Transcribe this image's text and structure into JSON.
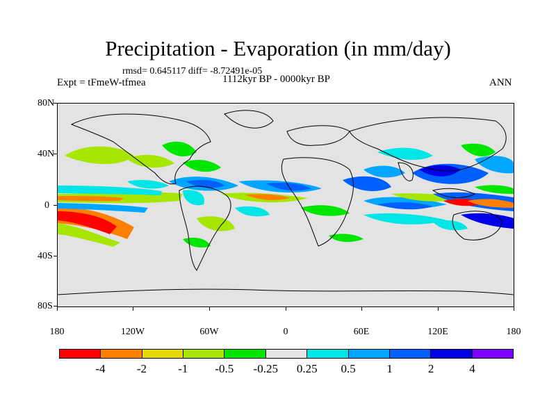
{
  "title": "Precipitation - Evaporation (in mm/day)",
  "stats": "rmsd= 0.645117 diff= -8.72491e-05",
  "period": "1112kyr BP - 0000kyr BP",
  "expt": "Expt = tFmeW-tfmea",
  "season": "ANN",
  "y_axis_labels": [
    "80N",
    "40N",
    "0",
    "40S",
    "80S"
  ],
  "x_axis_labels": [
    "180",
    "120W",
    "60W",
    "0",
    "60E",
    "120E",
    "180"
  ],
  "colorbar": {
    "colors": [
      "#ff0000",
      "#ff8000",
      "#e6d800",
      "#a6e600",
      "#00e600",
      "#e3e3e3",
      "#00e6e6",
      "#00a6ff",
      "#0060ff",
      "#0000e6",
      "#8000ff"
    ],
    "labels": [
      "-4",
      "-2",
      "-1",
      "-0.5",
      "-0.25",
      "0.25",
      "0.5",
      "1",
      "2",
      "4"
    ]
  },
  "colors": {
    "land_outline": "#000000",
    "no_change": "#e3e3e3"
  }
}
